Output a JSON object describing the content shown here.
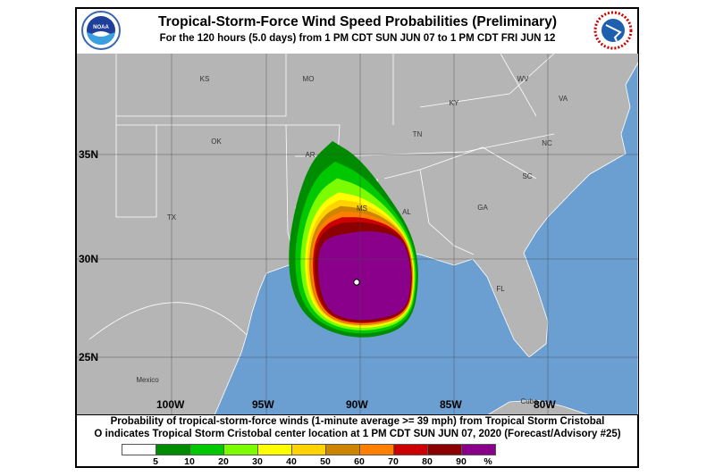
{
  "header": {
    "title": "Tropical-Storm-Force Wind Speed Probabilities (Preliminary)",
    "subtitle": "For the 120 hours (5.0 days) from 1 PM CDT SUN JUN 07 to 1 PM CDT FRI JUN 12",
    "left_logo": "NOAA",
    "right_logo": "NATIONAL WEATHER SERVICE"
  },
  "map": {
    "latitude_labels": [
      "35N",
      "30N",
      "25N"
    ],
    "longitude_labels": [
      "100W",
      "95W",
      "90W",
      "85W",
      "80W"
    ],
    "region_labels": [
      "KS",
      "MO",
      "KY",
      "WV",
      "VA",
      "OK",
      "AR",
      "TN",
      "NC",
      "SC",
      "TX",
      "MS",
      "AL",
      "GA",
      "FL",
      "Mexico",
      "Cuba"
    ],
    "colors": {
      "land": "#b5b5b5",
      "ocean": "#6b9fd1",
      "border": "#ffffff"
    },
    "storm_center_marker": "open-circle"
  },
  "caption": {
    "line1": "Probability of tropical-storm-force winds (1-minute average >= 39 mph) from Tropical Storm Cristobal",
    "line2": "O indicates Tropical Storm Cristobal center location at 1 PM CDT SUN JUN 07, 2020 (Forecast/Advisory #25)"
  },
  "legend": {
    "colors": [
      "#ffffff",
      "#008c00",
      "#00c800",
      "#7cfc00",
      "#ffff00",
      "#ffd200",
      "#cd8500",
      "#ff7f00",
      "#cd0000",
      "#8b0000",
      "#8b008b"
    ],
    "labels": [
      "5",
      "10",
      "20",
      "30",
      "40",
      "50",
      "60",
      "70",
      "80",
      "90",
      "%"
    ]
  }
}
